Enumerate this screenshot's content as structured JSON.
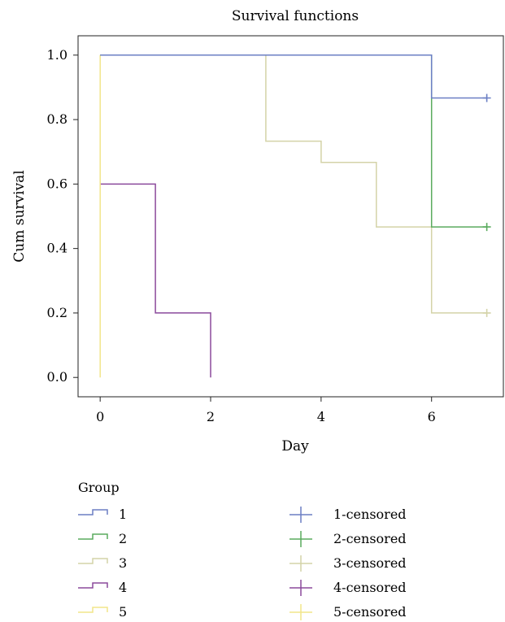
{
  "chart_data": {
    "type": "line",
    "title": "Survival functions",
    "xlabel": "Day",
    "ylabel": "Cum survival",
    "xlim": [
      -0.4,
      7.3
    ],
    "ylim": [
      -0.06,
      1.06
    ],
    "xticks": [
      0,
      2,
      4,
      6
    ],
    "yticks": [
      0.0,
      0.2,
      0.4,
      0.6,
      0.8,
      1.0
    ],
    "xtick_labels": [
      "0",
      "2",
      "4",
      "6"
    ],
    "ytick_labels": [
      "0.0",
      "0.2",
      "0.4",
      "0.6",
      "0.8",
      "1.0"
    ],
    "grid": false,
    "legend_title": "Group",
    "legend_position": "bottom",
    "series": [
      {
        "name": "1",
        "color": "#6b7fc4",
        "steps": [
          [
            0,
            1.0
          ],
          [
            6,
            1.0
          ],
          [
            6,
            0.867
          ],
          [
            7,
            0.867
          ]
        ],
        "censored": [
          [
            7,
            0.867
          ]
        ]
      },
      {
        "name": "2",
        "color": "#5aab5e",
        "steps": [
          [
            0,
            1.0
          ],
          [
            6,
            1.0
          ],
          [
            6,
            0.467
          ],
          [
            7,
            0.467
          ]
        ],
        "censored": [
          [
            7,
            0.467
          ]
        ]
      },
      {
        "name": "3",
        "color": "#d4d3a8",
        "steps": [
          [
            0,
            1.0
          ],
          [
            3,
            1.0
          ],
          [
            3,
            0.733
          ],
          [
            4,
            0.733
          ],
          [
            4,
            0.667
          ],
          [
            5,
            0.667
          ],
          [
            5,
            0.467
          ],
          [
            6,
            0.467
          ],
          [
            6,
            0.2
          ],
          [
            7,
            0.2
          ]
        ],
        "censored": [
          [
            7,
            0.2
          ]
        ]
      },
      {
        "name": "4",
        "color": "#8b4a9c",
        "steps": [
          [
            0,
            0.6
          ],
          [
            1,
            0.6
          ],
          [
            1,
            0.2
          ],
          [
            2,
            0.2
          ],
          [
            2,
            0.0
          ]
        ],
        "censored": []
      },
      {
        "name": "5",
        "color": "#f2e58a",
        "steps": [
          [
            0,
            1.0
          ],
          [
            0,
            0.0
          ]
        ],
        "censored": []
      }
    ],
    "censored_legend": [
      "1-censored",
      "2-censored",
      "3-censored",
      "4-censored",
      "5-censored"
    ]
  }
}
